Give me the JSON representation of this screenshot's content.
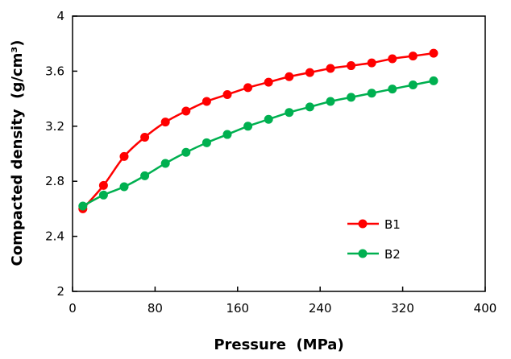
{
  "chart_data": {
    "type": "line",
    "title": "",
    "xlabel": "Pressure  (MPa)",
    "ylabel": "Compacted density  (g/cm³)",
    "xlim": [
      0,
      400
    ],
    "ylim": [
      2,
      4
    ],
    "xticks": [
      0,
      80,
      160,
      240,
      320,
      400
    ],
    "yticks": [
      2,
      2.4,
      2.8,
      3.2,
      3.6,
      4
    ],
    "xtick_labels": [
      "0",
      "80",
      "160",
      "240",
      "320",
      "400"
    ],
    "ytick_labels": [
      "2",
      "2.4",
      "2.8",
      "3.2",
      "3.6",
      "4"
    ],
    "grid": false,
    "legend_position": "lower-right",
    "x": [
      10,
      30,
      50,
      70,
      90,
      110,
      130,
      150,
      170,
      190,
      210,
      230,
      250,
      270,
      290,
      310,
      330,
      350
    ],
    "series": [
      {
        "name": "B1",
        "color": "#ff0000",
        "values": [
          2.6,
          2.77,
          2.98,
          3.12,
          3.23,
          3.31,
          3.38,
          3.43,
          3.48,
          3.52,
          3.56,
          3.59,
          3.62,
          3.64,
          3.66,
          3.69,
          3.71,
          3.73
        ]
      },
      {
        "name": "B2",
        "color": "#00b050",
        "values": [
          2.62,
          2.7,
          2.76,
          2.84,
          2.93,
          3.01,
          3.08,
          3.14,
          3.2,
          3.25,
          3.3,
          3.34,
          3.38,
          3.41,
          3.44,
          3.47,
          3.5,
          3.53
        ]
      }
    ]
  }
}
